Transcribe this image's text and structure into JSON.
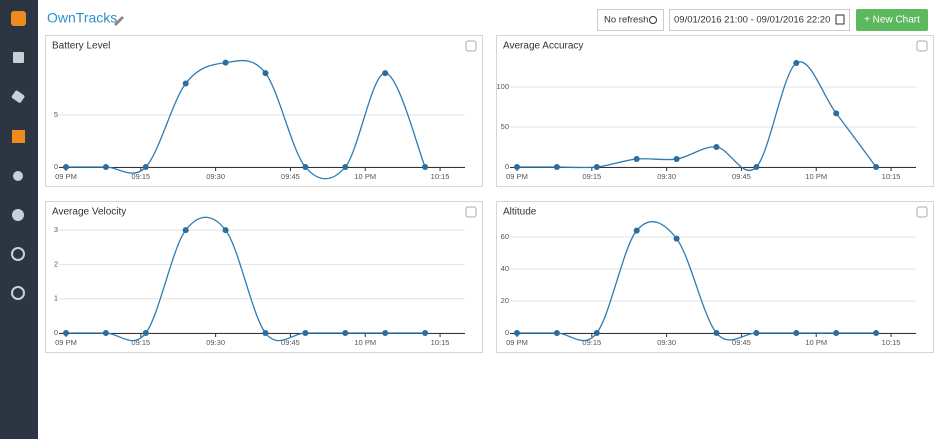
{
  "header": {
    "title": "OwnTracks",
    "refresh": "No refresh",
    "date_range": "09/01/2016 21:00 - 09/01/2016 22:20",
    "new_chart": "+ New Chart"
  },
  "chart_data": [
    {
      "type": "line",
      "title": "Battery Level",
      "color": "#2f7bb1",
      "x": [
        0,
        8,
        16,
        24,
        32,
        40,
        48,
        56,
        64,
        72
      ],
      "values": [
        0,
        0,
        0,
        8,
        10,
        9,
        0,
        0,
        9,
        0
      ],
      "xlim": [
        -0.6,
        80
      ],
      "ylim": [
        0,
        11.5
      ],
      "yticks": [
        0,
        5
      ],
      "grid": true,
      "xticks": [
        {
          "value": 0,
          "label": "09 PM"
        },
        {
          "value": 15,
          "label": "09:15"
        },
        {
          "value": 30,
          "label": "09:30"
        },
        {
          "value": 45,
          "label": "09:45"
        },
        {
          "value": 60,
          "label": "10 PM"
        },
        {
          "value": 75,
          "label": "10:15"
        }
      ]
    },
    {
      "type": "line",
      "title": "Average Accuracy",
      "color": "#2f7bb1",
      "x": [
        0,
        8,
        16,
        24,
        32,
        40,
        48,
        56,
        64,
        72
      ],
      "values": [
        0,
        0,
        0,
        10,
        10,
        25,
        0,
        130,
        67,
        0
      ],
      "xlim": [
        -0.6,
        80
      ],
      "ylim": [
        0,
        150
      ],
      "yticks": [
        0,
        50,
        100
      ],
      "grid": true,
      "xticks": [
        {
          "value": 0,
          "label": "09 PM"
        },
        {
          "value": 15,
          "label": "09:15"
        },
        {
          "value": 30,
          "label": "09:30"
        },
        {
          "value": 45,
          "label": "09:45"
        },
        {
          "value": 60,
          "label": "10 PM"
        },
        {
          "value": 75,
          "label": "10:15"
        }
      ]
    },
    {
      "type": "line",
      "title": "Average Velocity",
      "color": "#2f7bb1",
      "x": [
        0,
        8,
        16,
        24,
        32,
        40,
        48,
        56,
        64,
        72
      ],
      "values": [
        0,
        0,
        0,
        3,
        3,
        0,
        0,
        0,
        0,
        0
      ],
      "xlim": [
        -0.6,
        80
      ],
      "ylim": [
        0,
        3.5
      ],
      "yticks": [
        0,
        1,
        2,
        3
      ],
      "grid": true,
      "xticks": [
        {
          "value": 0,
          "label": "09 PM"
        },
        {
          "value": 15,
          "label": "09:15"
        },
        {
          "value": 30,
          "label": "09:30"
        },
        {
          "value": 45,
          "label": "09:45"
        },
        {
          "value": 60,
          "label": "10 PM"
        },
        {
          "value": 75,
          "label": "10:15"
        }
      ]
    },
    {
      "type": "line",
      "title": "Altitude",
      "color": "#2f7bb1",
      "x": [
        0,
        8,
        16,
        24,
        32,
        40,
        48,
        56,
        64,
        72
      ],
      "values": [
        0,
        0,
        0,
        64,
        59,
        0,
        0,
        0,
        0,
        0
      ],
      "xlim": [
        -0.6,
        80
      ],
      "ylim": [
        0,
        75
      ],
      "yticks": [
        0,
        20,
        40,
        60
      ],
      "grid": true,
      "xticks": [
        {
          "value": 0,
          "label": "09 PM"
        },
        {
          "value": 15,
          "label": "09:15"
        },
        {
          "value": 30,
          "label": "09:30"
        },
        {
          "value": 45,
          "label": "09:45"
        },
        {
          "value": 60,
          "label": "10 PM"
        },
        {
          "value": 75,
          "label": "10:15"
        }
      ]
    }
  ]
}
